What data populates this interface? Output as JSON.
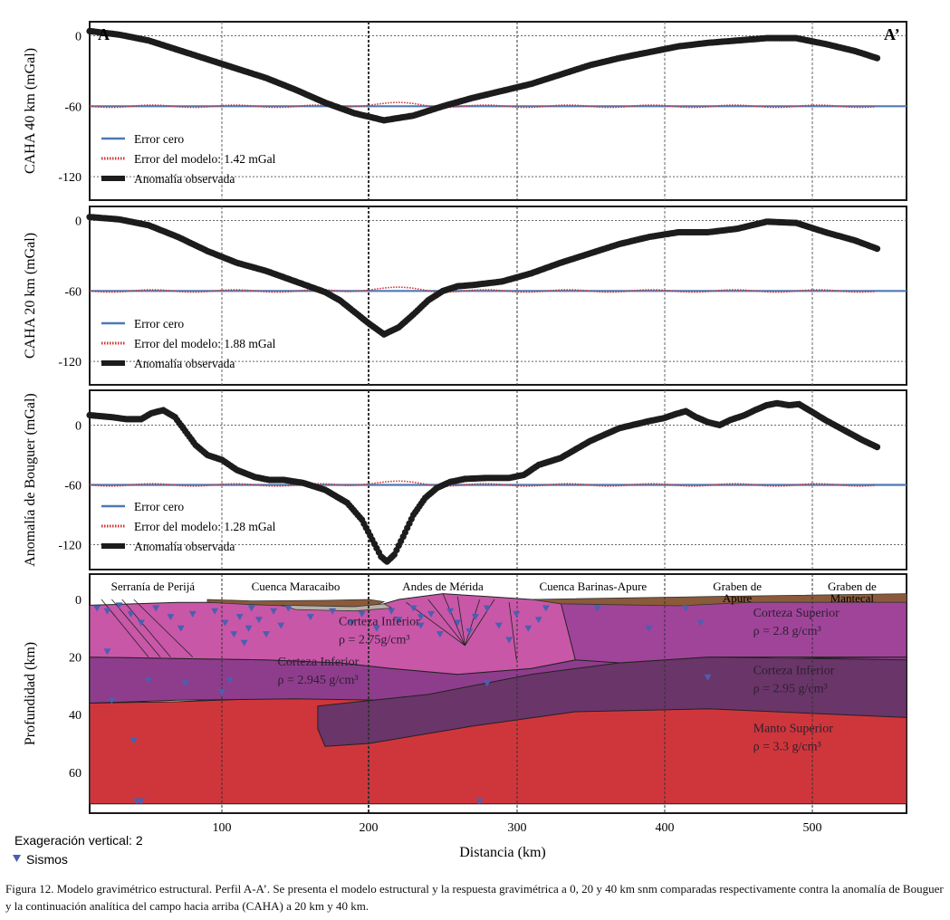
{
  "chart_data": [
    {
      "type": "line",
      "panel": "caha40",
      "ylabel": "CAHA 40 km  (mGal)",
      "corner_left": "A",
      "corner_right": "A’",
      "yticks": [
        "0",
        "-60",
        "-120"
      ],
      "ytick_values": [
        0,
        -60,
        -120
      ],
      "ylim": [
        -140,
        12
      ],
      "xlim": [
        0,
        555
      ],
      "zero_error_level": -60,
      "legend": {
        "zero": "Error cero",
        "model": "Error del modelo: 1.42 mGal",
        "obs": "Anomalía observada"
      },
      "series": [
        {
          "name": "Anomalía observada",
          "x": [
            0,
            20,
            40,
            60,
            80,
            100,
            120,
            140,
            160,
            180,
            200,
            220,
            240,
            260,
            280,
            300,
            320,
            340,
            360,
            380,
            400,
            420,
            440,
            460,
            480,
            500,
            520,
            535
          ],
          "y": [
            4,
            1,
            -4,
            -12,
            -20,
            -28,
            -36,
            -46,
            -57,
            -66,
            -72,
            -68,
            -60,
            -53,
            -47,
            -41,
            -33,
            -25,
            -19,
            -14,
            -9,
            -6,
            -4,
            -2,
            -2,
            -7,
            -13,
            -19
          ]
        }
      ]
    },
    {
      "type": "line",
      "panel": "caha20",
      "ylabel": "CAHA 20 km  (mGal)",
      "yticks": [
        "0",
        "-60",
        "-120"
      ],
      "ytick_values": [
        0,
        -60,
        -120
      ],
      "ylim": [
        -140,
        12
      ],
      "xlim": [
        0,
        555
      ],
      "zero_error_level": -60,
      "legend": {
        "zero": "Error cero",
        "model": "Error del modelo: 1.88 mGal",
        "obs": "Anomalía observada"
      },
      "series": [
        {
          "name": "Anomalía observada",
          "x": [
            0,
            20,
            40,
            60,
            80,
            100,
            120,
            140,
            160,
            170,
            180,
            190,
            200,
            210,
            220,
            230,
            240,
            250,
            260,
            280,
            300,
            320,
            340,
            360,
            380,
            400,
            420,
            440,
            460,
            480,
            500,
            520,
            535
          ],
          "y": [
            3,
            1,
            -4,
            -14,
            -26,
            -36,
            -43,
            -52,
            -61,
            -68,
            -78,
            -88,
            -97,
            -91,
            -80,
            -68,
            -60,
            -56,
            -55,
            -52,
            -45,
            -36,
            -28,
            -20,
            -14,
            -10,
            -10,
            -7,
            -1,
            -2,
            -10,
            -17,
            -24
          ]
        }
      ]
    },
    {
      "type": "line",
      "panel": "bouguer",
      "ylabel": "Anomalía de Bouguer (mGal)",
      "yticks": [
        "0",
        "-60",
        "-120"
      ],
      "ytick_values": [
        0,
        -60,
        -120
      ],
      "ylim": [
        -145,
        35
      ],
      "xlim": [
        0,
        555
      ],
      "zero_error_level": -60,
      "legend": {
        "zero": "Error cero",
        "model": "Error del modelo: 1.28 mGal",
        "obs": "Anomalía observada"
      },
      "series": [
        {
          "name": "Anomalía observada",
          "x": [
            0,
            15,
            25,
            35,
            42,
            50,
            58,
            65,
            72,
            80,
            90,
            100,
            112,
            122,
            132,
            145,
            160,
            175,
            185,
            192,
            198,
            202,
            207,
            213,
            220,
            228,
            236,
            245,
            255,
            270,
            285,
            295,
            305,
            320,
            340,
            360,
            380,
            390,
            398,
            405,
            412,
            420,
            428,
            435,
            445,
            452,
            460,
            467,
            475,
            482,
            490,
            500,
            510,
            525,
            535
          ],
          "y": [
            10,
            8,
            6,
            6,
            12,
            15,
            8,
            -6,
            -20,
            -30,
            -35,
            -45,
            -52,
            -55,
            -55,
            -58,
            -65,
            -78,
            -95,
            -115,
            -132,
            -137,
            -130,
            -112,
            -90,
            -73,
            -63,
            -57,
            -54,
            -53,
            -53,
            -50,
            -40,
            -33,
            -16,
            -3,
            4,
            7,
            11,
            14,
            8,
            3,
            0,
            5,
            10,
            15,
            20,
            22,
            20,
            21,
            14,
            5,
            -3,
            -15,
            -22
          ]
        }
      ]
    },
    {
      "type": "cross-section",
      "panel": "model",
      "ylabel": "Profundidad (km)",
      "xlabel": "Distancia (km)",
      "yticks": [
        "0",
        "20",
        "40",
        "60"
      ],
      "ytick_values": [
        0,
        20,
        40,
        60
      ],
      "ylim": [
        70,
        -3
      ],
      "xticks": [
        "100",
        "200",
        "300",
        "400",
        "500"
      ],
      "xtick_values": [
        100,
        200,
        300,
        400,
        500
      ],
      "xlim": [
        0,
        555
      ],
      "vertical_exaggeration": "Exageración vertical: 2",
      "legend_earthquakes": "Sismos",
      "regions": [
        {
          "name": "Serranía de Perijá",
          "x": 43
        },
        {
          "name": "Cuenca Maracaibo",
          "x": 140
        },
        {
          "name": "Andes de Mérida",
          "x": 240
        },
        {
          "name": "Cuenca Barinas-Apure",
          "x": 342
        },
        {
          "name": "Graben de",
          "name2": "Apure",
          "x": 440
        },
        {
          "name": "Graben de",
          "name2": "Mantecal",
          "x": 518
        }
      ],
      "bodies": [
        {
          "name": "Corteza Inferior",
          "density": "ρ = 2.75g/cm³",
          "color": "#c857a8"
        },
        {
          "name": "Corteza Inferior",
          "density": "ρ = 2.945 g/cm³",
          "color": "#8e3d8c"
        },
        {
          "name": "Corteza Superior",
          "density": "ρ = 2.8 g/cm³",
          "color": "#a0449a"
        },
        {
          "name": "Corteza Inferior",
          "density": "ρ = 2.95 g/cm³",
          "color": "#6a3569"
        },
        {
          "name": "Manto Superior",
          "density": "ρ = 3.3 g/cm³",
          "color": "#cf363b"
        }
      ]
    }
  ],
  "caption": "Figura 12. Modelo gravimétrico estructural. Perfil A-A’. Se presenta el modelo estructural y la respuesta gravimétrica a 0, 20 y 40 km snm comparadas respectivamente contra la anomalía de Bouguer y la continuación analítica del campo hacia arriba (CAHA) a 20 km y 40 km.",
  "colors": {
    "observed": "#1c1c1c",
    "zero_error": "#4f78b3",
    "model_error": "#cc3333",
    "earthquakes": "#4b5fb0",
    "grid": "#666666"
  }
}
